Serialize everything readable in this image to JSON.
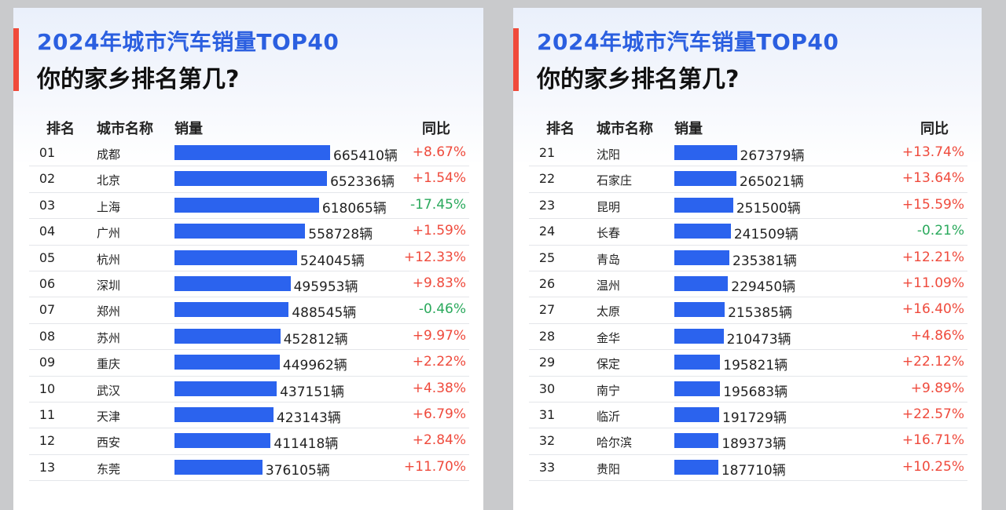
{
  "colors": {
    "bar": "#2b63ee",
    "up": "#ef4a3c",
    "down": "#2aa95c",
    "title": "#2b5fe0",
    "accent": "#f04a3a"
  },
  "chart_data": [
    {
      "type": "bar",
      "title": "2024年城市汽车销量TOP40",
      "subtitle": "你的家乡排名第几?",
      "headers": {
        "rank": "排名",
        "city": "城市名称",
        "sales": "销量",
        "yoy": "同比"
      },
      "unit": "辆",
      "rows": [
        {
          "rank": "01",
          "city": "成都",
          "value": 665410,
          "yoy": "+8.67%"
        },
        {
          "rank": "02",
          "city": "北京",
          "value": 652336,
          "yoy": "+1.54%"
        },
        {
          "rank": "03",
          "city": "上海",
          "value": 618065,
          "yoy": "-17.45%"
        },
        {
          "rank": "04",
          "city": "广州",
          "value": 558728,
          "yoy": "+1.59%"
        },
        {
          "rank": "05",
          "city": "杭州",
          "value": 524045,
          "yoy": "+12.33%"
        },
        {
          "rank": "06",
          "city": "深圳",
          "value": 495953,
          "yoy": "+9.83%"
        },
        {
          "rank": "07",
          "city": "郑州",
          "value": 488545,
          "yoy": "-0.46%"
        },
        {
          "rank": "08",
          "city": "苏州",
          "value": 452812,
          "yoy": "+9.97%"
        },
        {
          "rank": "09",
          "city": "重庆",
          "value": 449962,
          "yoy": "+2.22%"
        },
        {
          "rank": "10",
          "city": "武汉",
          "value": 437151,
          "yoy": "+4.38%"
        },
        {
          "rank": "11",
          "city": "天津",
          "value": 423143,
          "yoy": "+6.79%"
        },
        {
          "rank": "12",
          "city": "西安",
          "value": 411418,
          "yoy": "+2.84%"
        },
        {
          "rank": "13",
          "city": "东莞",
          "value": 376105,
          "yoy": "+11.70%"
        }
      ]
    },
    {
      "type": "bar",
      "title": "2024年城市汽车销量TOP40",
      "subtitle": "你的家乡排名第几?",
      "headers": {
        "rank": "排名",
        "city": "城市名称",
        "sales": "销量",
        "yoy": "同比"
      },
      "unit": "辆",
      "rows": [
        {
          "rank": "21",
          "city": "沈阳",
          "value": 267379,
          "yoy": "+13.74%"
        },
        {
          "rank": "22",
          "city": "石家庄",
          "value": 265021,
          "yoy": "+13.64%"
        },
        {
          "rank": "23",
          "city": "昆明",
          "value": 251500,
          "yoy": "+15.59%"
        },
        {
          "rank": "24",
          "city": "长春",
          "value": 241509,
          "yoy": "-0.21%"
        },
        {
          "rank": "25",
          "city": "青岛",
          "value": 235381,
          "yoy": "+12.21%"
        },
        {
          "rank": "26",
          "city": "温州",
          "value": 229450,
          "yoy": "+11.09%"
        },
        {
          "rank": "27",
          "city": "太原",
          "value": 215385,
          "yoy": "+16.40%"
        },
        {
          "rank": "28",
          "city": "金华",
          "value": 210473,
          "yoy": "+4.86%"
        },
        {
          "rank": "29",
          "city": "保定",
          "value": 195821,
          "yoy": "+22.12%"
        },
        {
          "rank": "30",
          "city": "南宁",
          "value": 195683,
          "yoy": "+9.89%"
        },
        {
          "rank": "31",
          "city": "临沂",
          "value": 191729,
          "yoy": "+22.57%"
        },
        {
          "rank": "32",
          "city": "哈尔滨",
          "value": 189373,
          "yoy": "+16.71%"
        },
        {
          "rank": "33",
          "city": "贵阳",
          "value": 187710,
          "yoy": "+10.25%"
        }
      ]
    }
  ]
}
